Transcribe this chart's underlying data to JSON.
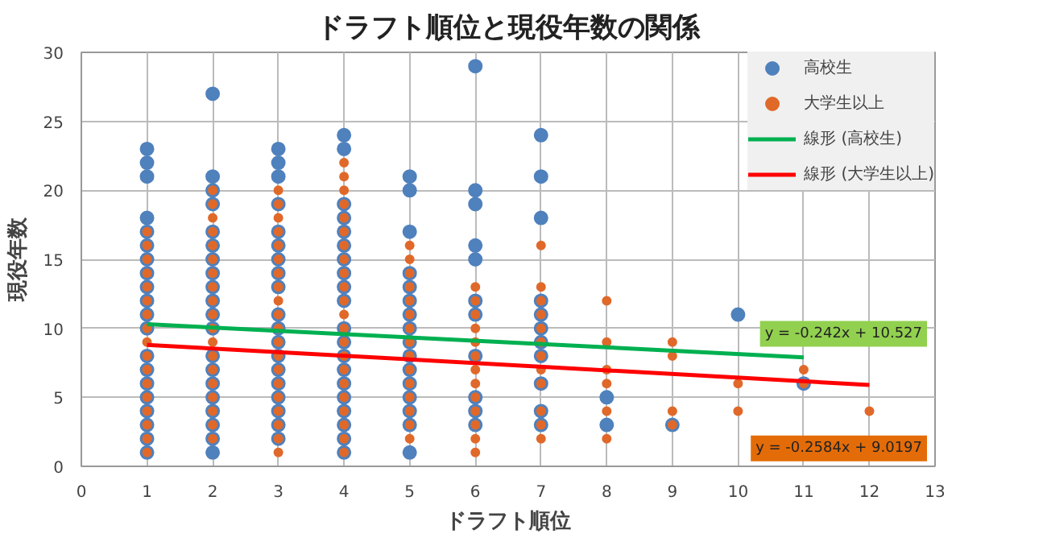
{
  "chart_data": {
    "type": "scatter",
    "title": "ドラフト順位と現役年数の関係",
    "xlabel": "ドラフト順位",
    "ylabel": "現役年数",
    "xlim": [
      0,
      13
    ],
    "xticks": [
      0,
      1,
      2,
      3,
      4,
      5,
      6,
      7,
      8,
      9,
      10,
      11,
      12,
      13
    ],
    "ylim": [
      0,
      30
    ],
    "yticks": [
      0,
      5,
      10,
      15,
      20,
      25,
      30
    ],
    "grid": true,
    "legend": "top right",
    "series": [
      {
        "name": "高校生",
        "color": "#4f81bd",
        "marker": "circle",
        "x": [
          1,
          1,
          1,
          1,
          1,
          1,
          1,
          1,
          1,
          1,
          1,
          1,
          1,
          1,
          1,
          1,
          1,
          1,
          1,
          1,
          2,
          2,
          2,
          2,
          2,
          2,
          2,
          2,
          2,
          2,
          2,
          2,
          2,
          2,
          2,
          2,
          2,
          2,
          2,
          2,
          3,
          3,
          3,
          3,
          3,
          3,
          3,
          3,
          3,
          3,
          3,
          3,
          3,
          3,
          3,
          3,
          3,
          3,
          3,
          4,
          4,
          4,
          4,
          4,
          4,
          4,
          4,
          4,
          4,
          4,
          4,
          4,
          4,
          4,
          4,
          4,
          4,
          4,
          4,
          5,
          5,
          5,
          5,
          5,
          5,
          5,
          5,
          5,
          5,
          5,
          5,
          5,
          5,
          5,
          5,
          6,
          6,
          6,
          6,
          6,
          6,
          6,
          6,
          6,
          6,
          6,
          7,
          7,
          7,
          7,
          7,
          7,
          7,
          7,
          7,
          7,
          7,
          8,
          8,
          9,
          10,
          11
        ],
        "values": [
          1,
          2,
          3,
          4,
          5,
          6,
          7,
          8,
          10,
          11,
          12,
          13,
          14,
          15,
          16,
          17,
          18,
          21,
          22,
          23,
          1,
          2,
          3,
          4,
          5,
          6,
          7,
          8,
          10,
          11,
          12,
          13,
          14,
          15,
          16,
          17,
          19,
          20,
          21,
          27,
          2,
          3,
          4,
          5,
          6,
          7,
          8,
          9,
          10,
          11,
          13,
          14,
          15,
          16,
          17,
          19,
          21,
          22,
          23,
          1,
          2,
          3,
          4,
          5,
          6,
          7,
          8,
          9,
          10,
          12,
          13,
          14,
          15,
          16,
          17,
          18,
          19,
          23,
          24,
          1,
          3,
          4,
          5,
          6,
          7,
          8,
          9,
          10,
          11,
          12,
          13,
          14,
          17,
          20,
          21,
          3,
          4,
          5,
          8,
          11,
          12,
          15,
          16,
          19,
          20,
          29,
          3,
          4,
          6,
          8,
          9,
          10,
          11,
          12,
          18,
          21,
          24,
          3,
          5,
          3,
          11,
          6
        ]
      },
      {
        "name": "大学生以上",
        "color": "#e0692a",
        "marker": "circle",
        "x": [
          1,
          1,
          1,
          1,
          1,
          1,
          1,
          1,
          1,
          1,
          1,
          1,
          1,
          1,
          1,
          1,
          1,
          2,
          2,
          2,
          2,
          2,
          2,
          2,
          2,
          2,
          2,
          2,
          2,
          2,
          2,
          2,
          2,
          2,
          2,
          2,
          3,
          3,
          3,
          3,
          3,
          3,
          3,
          3,
          3,
          3,
          3,
          3,
          3,
          3,
          3,
          3,
          3,
          3,
          3,
          3,
          4,
          4,
          4,
          4,
          4,
          4,
          4,
          4,
          4,
          4,
          4,
          4,
          4,
          4,
          4,
          4,
          4,
          4,
          4,
          4,
          4,
          4,
          5,
          5,
          5,
          5,
          5,
          5,
          5,
          5,
          5,
          5,
          5,
          5,
          5,
          5,
          5,
          6,
          6,
          6,
          6,
          6,
          6,
          6,
          6,
          6,
          6,
          6,
          6,
          6,
          7,
          7,
          7,
          7,
          7,
          7,
          7,
          7,
          7,
          7,
          7,
          7,
          8,
          8,
          8,
          8,
          8,
          8,
          9,
          9,
          9,
          9,
          10,
          10,
          11,
          11,
          12
        ],
        "values": [
          1,
          2,
          3,
          4,
          5,
          6,
          7,
          8,
          9,
          10,
          11,
          12,
          13,
          14,
          15,
          16,
          17,
          2,
          3,
          4,
          5,
          6,
          7,
          8,
          9,
          10,
          11,
          12,
          13,
          14,
          15,
          16,
          17,
          18,
          19,
          20,
          1,
          2,
          3,
          4,
          5,
          6,
          7,
          8,
          9,
          10,
          11,
          12,
          13,
          14,
          15,
          16,
          17,
          18,
          19,
          20,
          1,
          2,
          3,
          4,
          5,
          6,
          7,
          8,
          9,
          10,
          11,
          12,
          13,
          14,
          15,
          16,
          17,
          18,
          19,
          20,
          21,
          22,
          2,
          3,
          4,
          5,
          6,
          7,
          8,
          9,
          10,
          11,
          12,
          13,
          14,
          15,
          16,
          1,
          2,
          3,
          4,
          5,
          6,
          7,
          8,
          9,
          10,
          11,
          12,
          13,
          2,
          3,
          4,
          6,
          7,
          8,
          9,
          10,
          11,
          12,
          13,
          16,
          2,
          4,
          6,
          7,
          9,
          12,
          3,
          4,
          8,
          9,
          4,
          6,
          6,
          7,
          4
        ]
      },
      {
        "name": "線形 (高校生)",
        "type": "line",
        "color": "#00b050",
        "x": [
          1,
          11
        ],
        "values": [
          10.3,
          7.9
        ]
      },
      {
        "name": "線形 (大学生以上)",
        "type": "line",
        "color": "#ff0000",
        "x": [
          1,
          12
        ],
        "values": [
          8.8,
          5.9
        ]
      }
    ],
    "annotations": [
      "y = -0.242x + 10.527",
      "y = -0.2584x + 9.0197"
    ]
  }
}
